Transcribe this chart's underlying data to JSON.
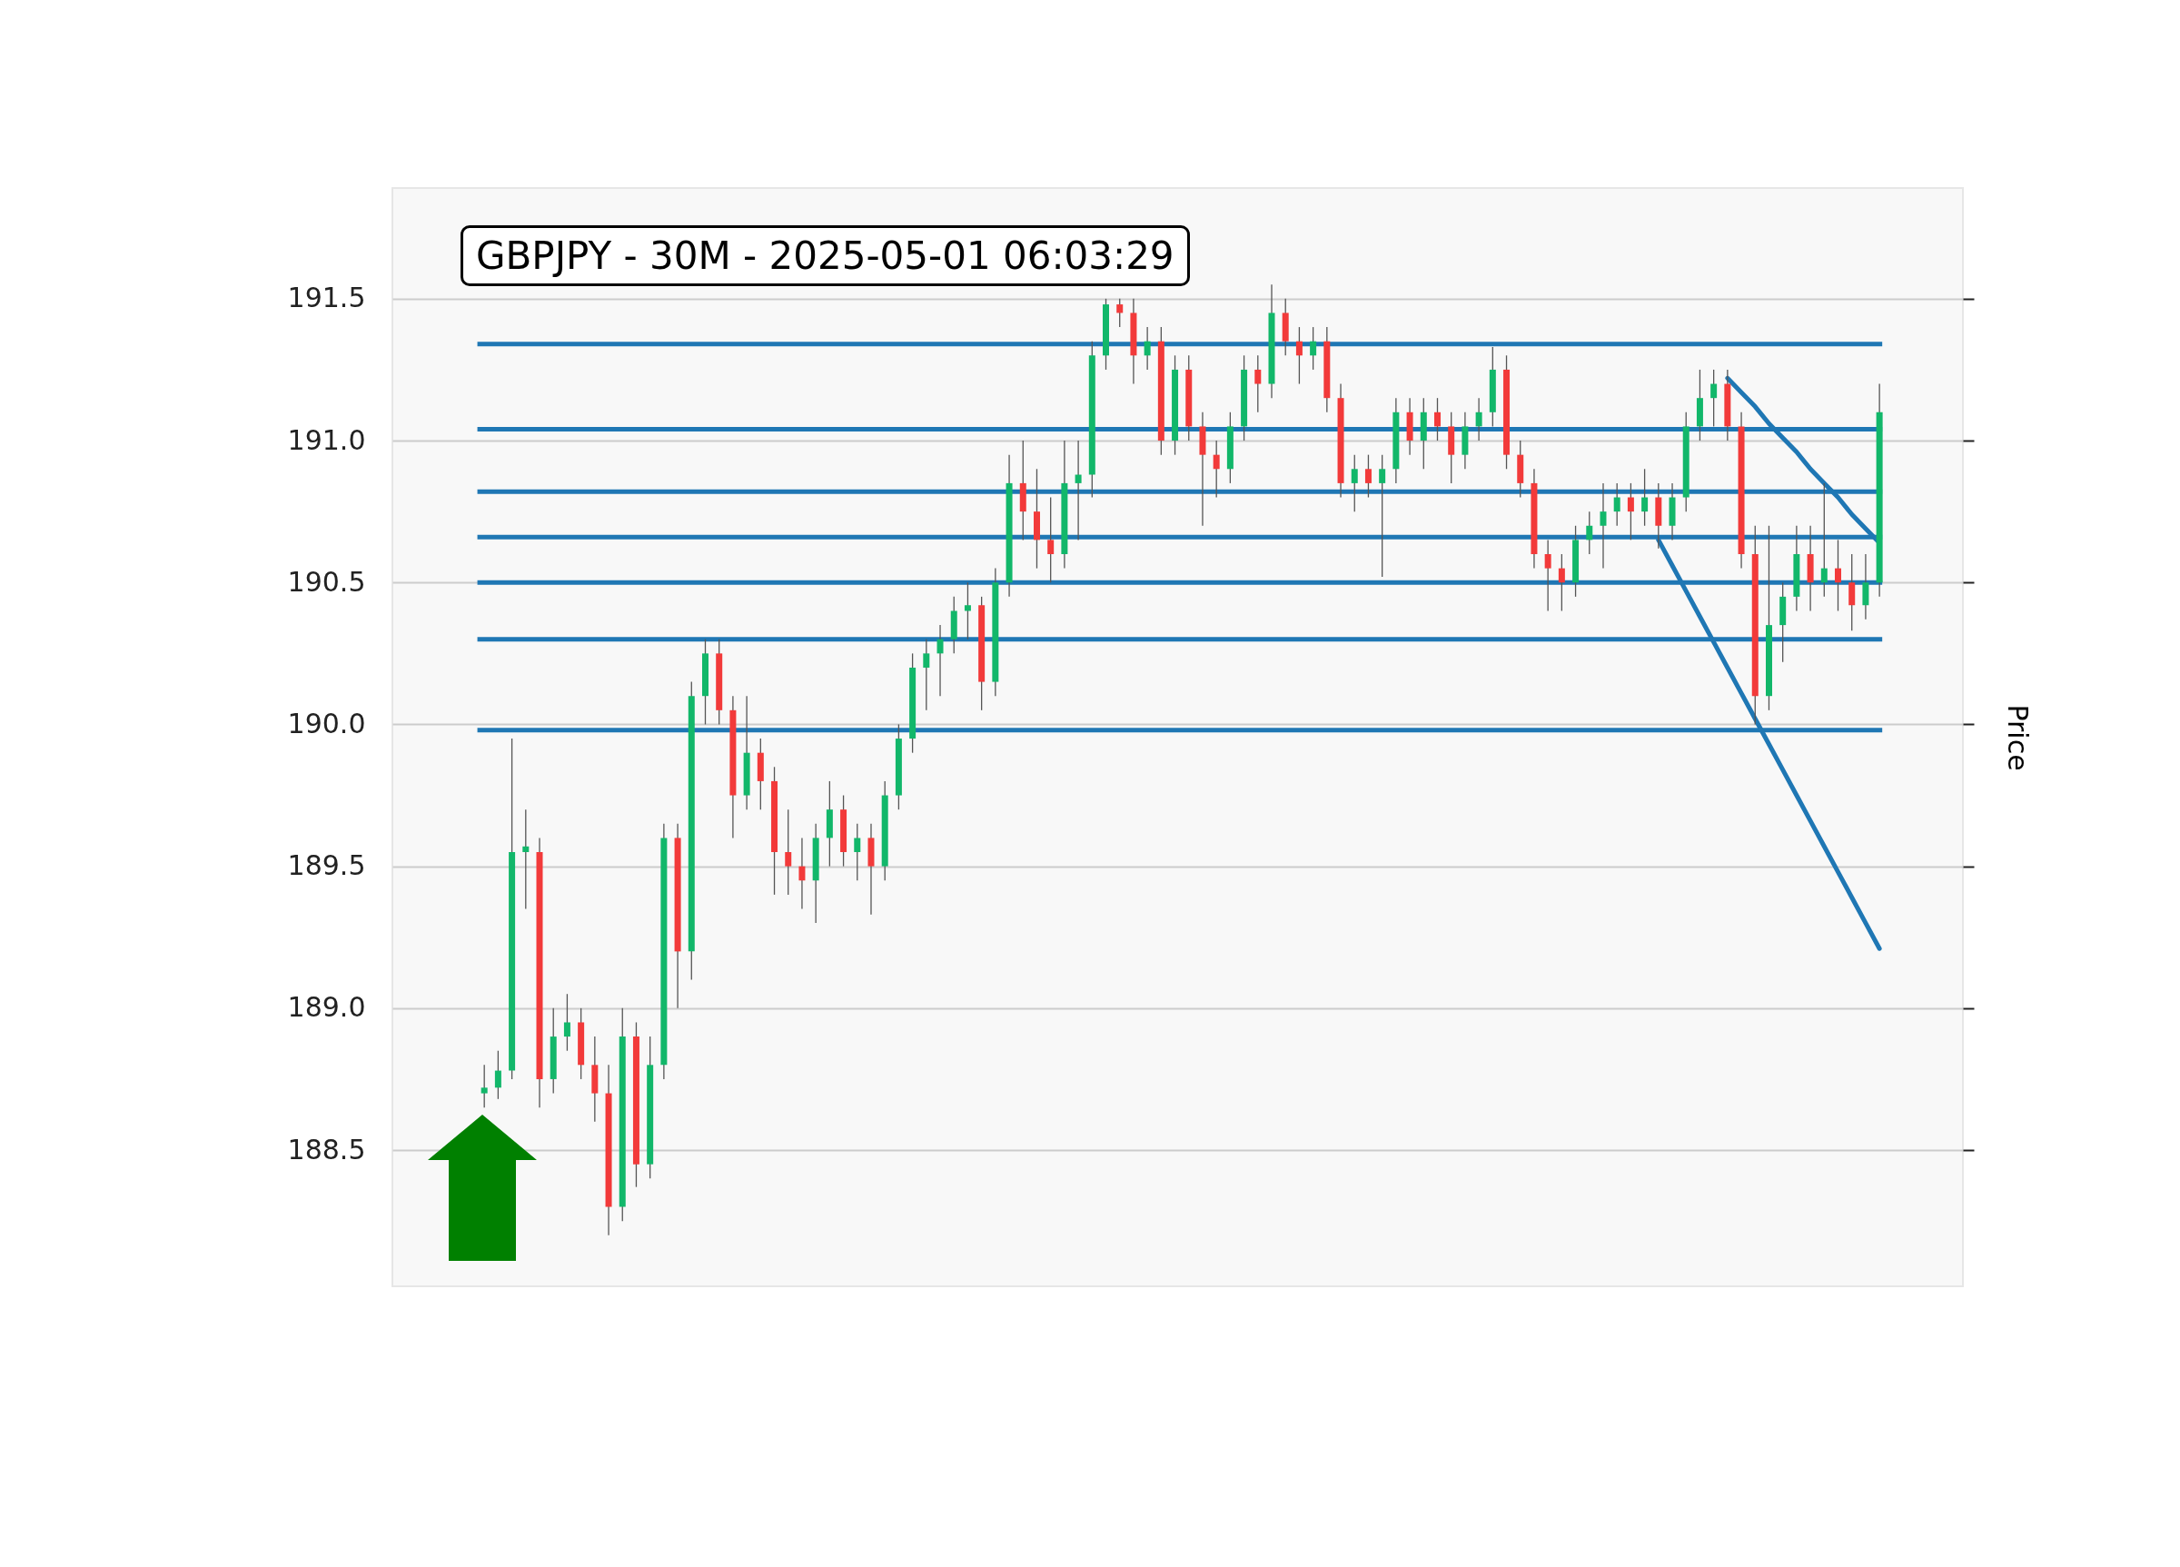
{
  "chart_data": {
    "type": "candlestick",
    "title": "GBPJPY - 30M - 2025-05-01 06:03:29",
    "ylabel": "Price",
    "categories": [
      null,
      null,
      null,
      null,
      null,
      null,
      null,
      null,
      null,
      null,
      null,
      null,
      null,
      null,
      null,
      null,
      null,
      null,
      null,
      null,
      null,
      null,
      null,
      null,
      null,
      null,
      null,
      null,
      null,
      null,
      null,
      null,
      null,
      null,
      null,
      null,
      null,
      null,
      null,
      null,
      null,
      null,
      null,
      null,
      null,
      null,
      null,
      null,
      null,
      null,
      null,
      null,
      null,
      null,
      null,
      null,
      null,
      null,
      null,
      null,
      null,
      null,
      null,
      null,
      null,
      null,
      null,
      null,
      null,
      null,
      null,
      null,
      null,
      null,
      null,
      null,
      null,
      null,
      null,
      null,
      null,
      null,
      null,
      null,
      null,
      null,
      null,
      null,
      null,
      null,
      null,
      null,
      null,
      null,
      null,
      null,
      null,
      null,
      null,
      null,
      null,
      null
    ],
    "ohlc": [
      [
        188.7,
        188.8,
        188.65,
        188.72
      ],
      [
        188.72,
        188.85,
        188.68,
        188.78
      ],
      [
        188.78,
        189.95,
        188.75,
        189.55
      ],
      [
        189.55,
        189.7,
        189.35,
        189.57
      ],
      [
        189.55,
        189.6,
        188.65,
        188.75
      ],
      [
        188.75,
        189.0,
        188.7,
        188.9
      ],
      [
        188.9,
        189.05,
        188.85,
        188.95
      ],
      [
        188.95,
        189.0,
        188.75,
        188.8
      ],
      [
        188.8,
        188.9,
        188.6,
        188.7
      ],
      [
        188.7,
        188.8,
        188.2,
        188.3
      ],
      [
        188.3,
        189.0,
        188.25,
        188.9
      ],
      [
        188.9,
        188.95,
        188.37,
        188.45
      ],
      [
        188.45,
        188.9,
        188.4,
        188.8
      ],
      [
        188.8,
        189.65,
        188.75,
        189.6
      ],
      [
        189.6,
        189.65,
        189.0,
        189.2
      ],
      [
        189.2,
        190.15,
        189.1,
        190.1
      ],
      [
        190.1,
        190.3,
        190.0,
        190.25
      ],
      [
        190.25,
        190.3,
        190.0,
        190.05
      ],
      [
        190.05,
        190.1,
        189.6,
        189.75
      ],
      [
        189.75,
        190.1,
        189.7,
        189.9
      ],
      [
        189.9,
        189.95,
        189.7,
        189.8
      ],
      [
        189.8,
        189.85,
        189.4,
        189.55
      ],
      [
        189.55,
        189.7,
        189.4,
        189.5
      ],
      [
        189.5,
        189.6,
        189.35,
        189.45
      ],
      [
        189.45,
        189.65,
        189.3,
        189.6
      ],
      [
        189.6,
        189.8,
        189.5,
        189.7
      ],
      [
        189.7,
        189.75,
        189.5,
        189.55
      ],
      [
        189.55,
        189.65,
        189.45,
        189.6
      ],
      [
        189.6,
        189.65,
        189.33,
        189.5
      ],
      [
        189.5,
        189.8,
        189.45,
        189.75
      ],
      [
        189.75,
        190.0,
        189.7,
        189.95
      ],
      [
        189.95,
        190.25,
        189.9,
        190.2
      ],
      [
        190.2,
        190.3,
        190.05,
        190.25
      ],
      [
        190.25,
        190.35,
        190.1,
        190.3
      ],
      [
        190.3,
        190.45,
        190.25,
        190.4
      ],
      [
        190.4,
        190.5,
        190.3,
        190.42
      ],
      [
        190.42,
        190.45,
        190.05,
        190.15
      ],
      [
        190.15,
        190.55,
        190.1,
        190.5
      ],
      [
        190.5,
        190.95,
        190.45,
        190.85
      ],
      [
        190.85,
        191.0,
        190.65,
        190.75
      ],
      [
        190.75,
        190.9,
        190.55,
        190.65
      ],
      [
        190.65,
        190.8,
        190.5,
        190.6
      ],
      [
        190.6,
        191.0,
        190.55,
        190.85
      ],
      [
        190.85,
        191.0,
        190.65,
        190.88
      ],
      [
        190.88,
        191.35,
        190.8,
        191.3
      ],
      [
        191.3,
        191.5,
        191.25,
        191.48
      ],
      [
        191.48,
        191.5,
        191.4,
        191.45
      ],
      [
        191.45,
        191.5,
        191.2,
        191.3
      ],
      [
        191.3,
        191.4,
        191.25,
        191.35
      ],
      [
        191.35,
        191.4,
        190.95,
        191.0
      ],
      [
        191.0,
        191.3,
        190.95,
        191.25
      ],
      [
        191.25,
        191.3,
        191.0,
        191.05
      ],
      [
        191.05,
        191.1,
        190.7,
        190.95
      ],
      [
        190.95,
        191.0,
        190.8,
        190.9
      ],
      [
        190.9,
        191.1,
        190.85,
        191.05
      ],
      [
        191.05,
        191.3,
        191.0,
        191.25
      ],
      [
        191.25,
        191.3,
        191.1,
        191.2
      ],
      [
        191.2,
        191.55,
        191.15,
        191.45
      ],
      [
        191.45,
        191.5,
        191.3,
        191.35
      ],
      [
        191.35,
        191.4,
        191.2,
        191.3
      ],
      [
        191.3,
        191.4,
        191.25,
        191.35
      ],
      [
        191.35,
        191.4,
        191.1,
        191.15
      ],
      [
        191.15,
        191.2,
        190.8,
        190.85
      ],
      [
        190.85,
        190.95,
        190.75,
        190.9
      ],
      [
        190.9,
        190.95,
        190.8,
        190.85
      ],
      [
        190.85,
        190.95,
        190.52,
        190.9
      ],
      [
        190.9,
        191.15,
        190.85,
        191.1
      ],
      [
        191.1,
        191.15,
        190.95,
        191.0
      ],
      [
        191.0,
        191.15,
        190.9,
        191.1
      ],
      [
        191.1,
        191.15,
        191.0,
        191.05
      ],
      [
        191.05,
        191.1,
        190.85,
        190.95
      ],
      [
        190.95,
        191.1,
        190.9,
        191.05
      ],
      [
        191.05,
        191.15,
        191.0,
        191.1
      ],
      [
        191.1,
        191.33,
        191.05,
        191.25
      ],
      [
        191.25,
        191.3,
        190.9,
        190.95
      ],
      [
        190.95,
        191.0,
        190.8,
        190.85
      ],
      [
        190.85,
        190.9,
        190.55,
        190.6
      ],
      [
        190.6,
        190.65,
        190.4,
        190.55
      ],
      [
        190.55,
        190.6,
        190.4,
        190.5
      ],
      [
        190.5,
        190.7,
        190.45,
        190.65
      ],
      [
        190.65,
        190.75,
        190.6,
        190.7
      ],
      [
        190.7,
        190.85,
        190.55,
        190.75
      ],
      [
        190.75,
        190.85,
        190.7,
        190.8
      ],
      [
        190.8,
        190.85,
        190.65,
        190.75
      ],
      [
        190.75,
        190.9,
        190.7,
        190.8
      ],
      [
        190.8,
        190.85,
        190.62,
        190.7
      ],
      [
        190.7,
        190.85,
        190.65,
        190.8
      ],
      [
        190.8,
        191.1,
        190.75,
        191.05
      ],
      [
        191.05,
        191.25,
        191.0,
        191.15
      ],
      [
        191.15,
        191.25,
        191.05,
        191.2
      ],
      [
        191.2,
        191.25,
        191.0,
        191.05
      ],
      [
        191.05,
        191.1,
        190.55,
        190.6
      ],
      [
        190.6,
        190.7,
        190.0,
        190.1
      ],
      [
        190.1,
        190.7,
        190.05,
        190.35
      ],
      [
        190.35,
        190.5,
        190.22,
        190.45
      ],
      [
        190.45,
        190.7,
        190.4,
        190.6
      ],
      [
        190.6,
        190.7,
        190.4,
        190.5
      ],
      [
        190.5,
        190.85,
        190.45,
        190.55
      ],
      [
        190.55,
        190.65,
        190.4,
        190.5
      ],
      [
        190.5,
        190.6,
        190.33,
        190.42
      ],
      [
        190.42,
        190.6,
        190.37,
        190.5
      ],
      [
        190.5,
        191.2,
        190.45,
        191.1
      ]
    ],
    "series": [
      {
        "type": "line",
        "color": "#1f77b4",
        "values": [
          null,
          null,
          null,
          null,
          null,
          null,
          null,
          null,
          null,
          null,
          null,
          null,
          null,
          null,
          null,
          null,
          null,
          null,
          null,
          null,
          null,
          null,
          null,
          null,
          null,
          null,
          null,
          null,
          null,
          null,
          null,
          null,
          null,
          null,
          null,
          null,
          null,
          null,
          null,
          null,
          null,
          null,
          null,
          null,
          null,
          null,
          null,
          null,
          null,
          null,
          null,
          null,
          null,
          null,
          null,
          null,
          null,
          null,
          null,
          null,
          null,
          null,
          null,
          null,
          null,
          null,
          null,
          null,
          null,
          null,
          null,
          null,
          null,
          null,
          null,
          null,
          null,
          null,
          null,
          null,
          null,
          null,
          null,
          null,
          null,
          null,
          null,
          null,
          null,
          null,
          191.22,
          191.17,
          191.12,
          191.06,
          191.01,
          190.96,
          190.9,
          190.85,
          190.8,
          190.74,
          190.69,
          190.64
        ]
      },
      {
        "type": "line",
        "color": "#1f77b4",
        "values": [
          null,
          null,
          null,
          null,
          null,
          null,
          null,
          null,
          null,
          null,
          null,
          null,
          null,
          null,
          null,
          null,
          null,
          null,
          null,
          null,
          null,
          null,
          null,
          null,
          null,
          null,
          null,
          null,
          null,
          null,
          null,
          null,
          null,
          null,
          null,
          null,
          null,
          null,
          null,
          null,
          null,
          null,
          null,
          null,
          null,
          null,
          null,
          null,
          null,
          null,
          null,
          null,
          null,
          null,
          null,
          null,
          null,
          null,
          null,
          null,
          null,
          null,
          null,
          null,
          null,
          null,
          null,
          null,
          null,
          null,
          null,
          null,
          null,
          null,
          null,
          null,
          null,
          null,
          null,
          null,
          null,
          null,
          null,
          null,
          null,
          190.65,
          190.56,
          190.47,
          190.38,
          190.29,
          190.2,
          190.11,
          190.02,
          189.93,
          189.84,
          189.75,
          189.66,
          189.57,
          189.48,
          189.39,
          189.3,
          189.21
        ]
      }
    ],
    "ref_lines": [
      {
        "axis": "y",
        "value": 191.34,
        "color": "#1f77b4"
      },
      {
        "axis": "y",
        "value": 191.04,
        "color": "#1f77b4"
      },
      {
        "axis": "y",
        "value": 190.82,
        "color": "#1f77b4"
      },
      {
        "axis": "y",
        "value": 190.66,
        "color": "#1f77b4"
      },
      {
        "axis": "y",
        "value": 190.5,
        "color": "#1f77b4"
      },
      {
        "axis": "y",
        "value": 190.3,
        "color": "#1f77b4"
      },
      {
        "axis": "y",
        "value": 189.98,
        "color": "#1f77b4"
      }
    ],
    "ylim": [
      188.02,
      191.89
    ],
    "yticks": [
      188.5,
      {
        "value": 189,
        "label": "189.0"
      },
      189.5,
      {
        "value": 190,
        "label": "190.0"
      },
      190.5,
      {
        "value": 191,
        "label": "191.0"
      },
      191.5
    ],
    "grid": "y"
  }
}
